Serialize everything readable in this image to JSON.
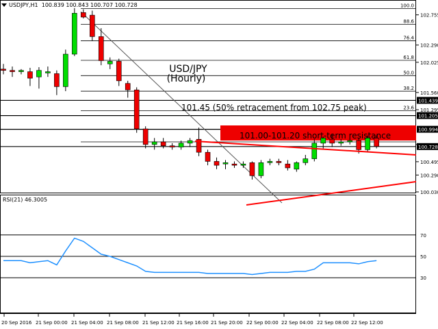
{
  "window": {
    "symbol": "USDJPY,H1",
    "ohlc": "100.839 100.843 100.707 100.728"
  },
  "rsi": {
    "label": "RSI(21) 46.3005"
  },
  "colors": {
    "bull": "#00dd00",
    "bear": "#ee0000",
    "rsi_line": "#1e90ff",
    "trend": "#ff0000",
    "resistance_box": "#ee0000"
  },
  "annotations": {
    "title_line1": "USD/JPY",
    "title_line2": "(Hourly)",
    "retracement": "101.45 (50% retracement from 102.75 peak)",
    "resistance": "101.00-101.20 short-term resistance"
  },
  "price_axis_ticks": [
    "102.755",
    "102.290",
    "102.025",
    "101.560",
    "101.295",
    "100.760",
    "100.495",
    "100.290",
    "100.030"
  ],
  "price_badges": [
    {
      "label": "101.439",
      "price": 101.439,
      "color": "#000000",
      "text_color": "#ffffff"
    },
    {
      "label": "101.205",
      "price": 101.205,
      "color": "#000000",
      "text_color": "#ffffff"
    },
    {
      "label": "100.994",
      "price": 100.994,
      "color": "#000000",
      "text_color": "#ffffff"
    },
    {
      "label": "100.728",
      "price": 100.728,
      "color": "#000000",
      "text_color": "#ffffff"
    }
  ],
  "fib_levels": [
    {
      "label": "100.0",
      "price": 102.85
    },
    {
      "label": "88.6",
      "price": 102.61
    },
    {
      "label": "76.4",
      "price": 102.355
    },
    {
      "label": "61.8",
      "price": 102.055
    },
    {
      "label": "50.0",
      "price": 101.82
    },
    {
      "label": "38.2",
      "price": 101.58
    },
    {
      "label": "23.6",
      "price": 101.28
    },
    {
      "label": "0.0",
      "price": 100.8
    }
  ],
  "x_axis_labels": [
    "20 Sep 2016",
    "21 Sep 00:00",
    "21 Sep 04:00",
    "21 Sep 08:00",
    "21 Sep 12:00",
    "21 Sep 16:00",
    "21 Sep 20:00",
    "22 Sep 00:00",
    "22 Sep 04:00",
    "22 Sep 08:00",
    "22 Sep 12:00"
  ],
  "rsi_levels": [
    "70",
    "50",
    "30"
  ],
  "chart_data": {
    "type": "candlestick",
    "symbol": "USDJPY",
    "timeframe": "H1",
    "candles": [
      {
        "o": 101.92,
        "h": 102.0,
        "l": 101.84,
        "c": 101.9
      },
      {
        "o": 101.9,
        "h": 101.96,
        "l": 101.8,
        "c": 101.88
      },
      {
        "o": 101.88,
        "h": 101.92,
        "l": 101.84,
        "c": 101.9
      },
      {
        "o": 101.88,
        "h": 101.94,
        "l": 101.66,
        "c": 101.78
      },
      {
        "o": 101.8,
        "h": 101.95,
        "l": 101.62,
        "c": 101.9
      },
      {
        "o": 101.86,
        "h": 101.96,
        "l": 101.8,
        "c": 101.88
      },
      {
        "o": 101.85,
        "h": 101.9,
        "l": 101.52,
        "c": 101.65
      },
      {
        "o": 101.65,
        "h": 102.22,
        "l": 101.58,
        "c": 102.15
      },
      {
        "o": 102.15,
        "h": 102.86,
        "l": 102.12,
        "c": 102.78
      },
      {
        "o": 102.79,
        "h": 102.84,
        "l": 102.7,
        "c": 102.72
      },
      {
        "o": 102.75,
        "h": 102.82,
        "l": 102.35,
        "c": 102.42
      },
      {
        "o": 102.42,
        "h": 102.55,
        "l": 101.98,
        "c": 102.05
      },
      {
        "o": 102.0,
        "h": 102.1,
        "l": 101.92,
        "c": 102.04
      },
      {
        "o": 102.04,
        "h": 102.08,
        "l": 101.66,
        "c": 101.74
      },
      {
        "o": 101.7,
        "h": 101.74,
        "l": 101.48,
        "c": 101.6
      },
      {
        "o": 101.6,
        "h": 101.64,
        "l": 100.94,
        "c": 101.0
      },
      {
        "o": 101.0,
        "h": 101.04,
        "l": 100.7,
        "c": 100.76
      },
      {
        "o": 100.76,
        "h": 100.86,
        "l": 100.68,
        "c": 100.8
      },
      {
        "o": 100.8,
        "h": 100.86,
        "l": 100.7,
        "c": 100.74
      },
      {
        "o": 100.74,
        "h": 100.78,
        "l": 100.68,
        "c": 100.72
      },
      {
        "o": 100.72,
        "h": 100.82,
        "l": 100.68,
        "c": 100.78
      },
      {
        "o": 100.78,
        "h": 100.86,
        "l": 100.72,
        "c": 100.82
      },
      {
        "o": 100.84,
        "h": 101.02,
        "l": 100.58,
        "c": 100.64
      },
      {
        "o": 100.64,
        "h": 100.68,
        "l": 100.44,
        "c": 100.5
      },
      {
        "o": 100.5,
        "h": 100.56,
        "l": 100.38,
        "c": 100.44
      },
      {
        "o": 100.46,
        "h": 100.52,
        "l": 100.38,
        "c": 100.48
      },
      {
        "o": 100.46,
        "h": 100.5,
        "l": 100.4,
        "c": 100.44
      },
      {
        "o": 100.44,
        "h": 100.5,
        "l": 100.4,
        "c": 100.46
      },
      {
        "o": 100.48,
        "h": 100.5,
        "l": 100.22,
        "c": 100.28
      },
      {
        "o": 100.28,
        "h": 100.52,
        "l": 100.24,
        "c": 100.48
      },
      {
        "o": 100.48,
        "h": 100.54,
        "l": 100.44,
        "c": 100.5
      },
      {
        "o": 100.5,
        "h": 100.54,
        "l": 100.44,
        "c": 100.48
      },
      {
        "o": 100.46,
        "h": 100.52,
        "l": 100.36,
        "c": 100.4
      },
      {
        "o": 100.38,
        "h": 100.5,
        "l": 100.34,
        "c": 100.48
      },
      {
        "o": 100.48,
        "h": 100.6,
        "l": 100.44,
        "c": 100.54
      },
      {
        "o": 100.54,
        "h": 100.84,
        "l": 100.5,
        "c": 100.78
      },
      {
        "o": 100.78,
        "h": 100.88,
        "l": 100.7,
        "c": 100.86
      },
      {
        "o": 100.84,
        "h": 100.92,
        "l": 100.72,
        "c": 100.78
      },
      {
        "o": 100.78,
        "h": 100.84,
        "l": 100.74,
        "c": 100.8
      },
      {
        "o": 100.8,
        "h": 100.86,
        "l": 100.76,
        "c": 100.82
      },
      {
        "o": 100.82,
        "h": 100.86,
        "l": 100.62,
        "c": 100.68
      },
      {
        "o": 100.68,
        "h": 100.9,
        "l": 100.64,
        "c": 100.86
      },
      {
        "o": 100.86,
        "h": 100.9,
        "l": 100.7,
        "c": 100.73
      }
    ],
    "y_range": [
      100.03,
      102.92
    ],
    "rsi": {
      "values": [
        46,
        46,
        46,
        44,
        45,
        46,
        42,
        55,
        67,
        64,
        58,
        52,
        50,
        47,
        44,
        41,
        36,
        35,
        35,
        35,
        35,
        35,
        35,
        34,
        34,
        34,
        34,
        34,
        33,
        34,
        35,
        35,
        35,
        36,
        36,
        38,
        44,
        44,
        44,
        44,
        43,
        45,
        46
      ],
      "y_range": [
        0,
        100
      ],
      "levels": [
        70,
        50,
        30
      ]
    }
  }
}
